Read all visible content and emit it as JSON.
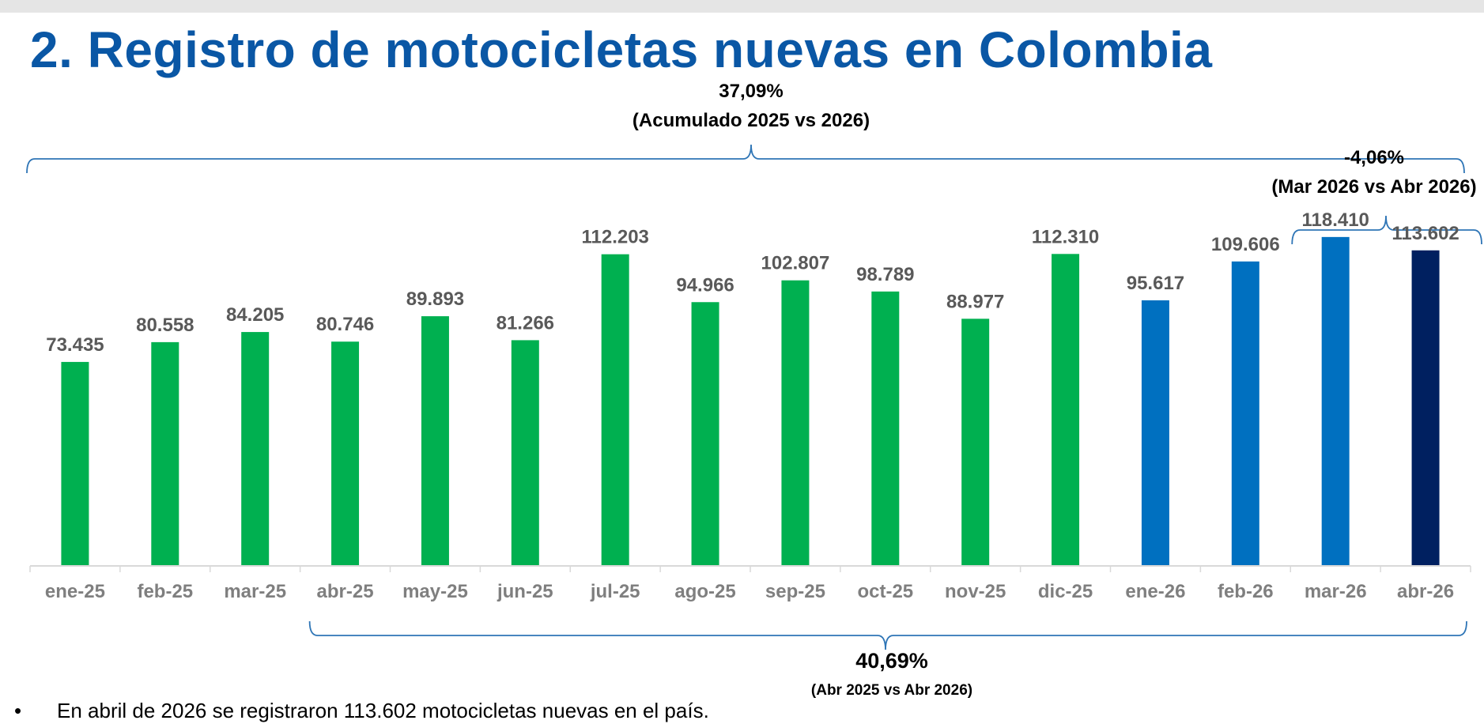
{
  "title": "2. Registro de motocicletas nuevas en Colombia",
  "chart_data": {
    "type": "bar",
    "title": "",
    "xlabel": "",
    "ylabel": "",
    "ylim": [
      0,
      125000
    ],
    "grid": false,
    "categories": [
      "ene-25",
      "feb-25",
      "mar-25",
      "abr-25",
      "may-25",
      "jun-25",
      "jul-25",
      "ago-25",
      "sep-25",
      "oct-25",
      "nov-25",
      "dic-25",
      "ene-26",
      "feb-26",
      "mar-26",
      "abr-26"
    ],
    "values": [
      73435,
      80558,
      84205,
      80746,
      89893,
      81266,
      112203,
      94966,
      102807,
      98789,
      88977,
      112310,
      95617,
      109606,
      118410,
      113602
    ],
    "value_labels": [
      "73.435",
      "80.558",
      "84.205",
      "80.746",
      "89.893",
      "81.266",
      "112.203",
      "94.966",
      "102.807",
      "98.789",
      "88.977",
      "112.310",
      "95.617",
      "109.606",
      "118.410",
      "113.602"
    ],
    "bar_colors": [
      "#00b050",
      "#00b050",
      "#00b050",
      "#00b050",
      "#00b050",
      "#00b050",
      "#00b050",
      "#00b050",
      "#00b050",
      "#00b050",
      "#00b050",
      "#00b050",
      "#0070c0",
      "#0070c0",
      "#0070c0",
      "#002060"
    ],
    "annotations": [
      {
        "id": "acumulado",
        "value": "37,09%",
        "label": "(Acumulado 2025 vs 2026)",
        "from": "ene-25",
        "to": "abr-26",
        "side": "top"
      },
      {
        "id": "mensual",
        "value": "-4,06%",
        "label": "(Mar 2026 vs Abr 2026)",
        "from": "mar-26",
        "to": "abr-26",
        "side": "top"
      },
      {
        "id": "anual",
        "value": "40,69%",
        "label": "(Abr 2025 vs Abr 2026)",
        "from": "abr-25",
        "to": "abr-26",
        "side": "bottom"
      }
    ]
  },
  "colors": {
    "title": "#0a57a5",
    "green": "#00b050",
    "blue": "#0070c0",
    "navy": "#002060",
    "bracket": "#2e75b6"
  },
  "bullets": [
    "En abril de 2026 se registraron 113.602 motocicletas nuevas en el país."
  ],
  "bullet_marker": "•"
}
